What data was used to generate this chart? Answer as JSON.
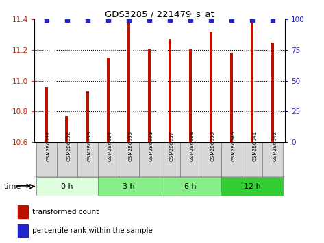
{
  "title": "GDS3285 / 221479_s_at",
  "samples": [
    "GSM286031",
    "GSM286032",
    "GSM286033",
    "GSM286034",
    "GSM286035",
    "GSM286036",
    "GSM286037",
    "GSM286038",
    "GSM286039",
    "GSM286040",
    "GSM286041",
    "GSM286042"
  ],
  "bar_values": [
    10.96,
    10.77,
    10.93,
    11.15,
    11.38,
    11.21,
    11.27,
    11.21,
    11.32,
    11.18,
    11.38,
    11.25
  ],
  "percentile_values": [
    99.5,
    99.5,
    99.5,
    99.5,
    99.5,
    99.5,
    99.5,
    99.5,
    99.5,
    99.5,
    99.5,
    99.5
  ],
  "ylim_left": [
    10.6,
    11.4
  ],
  "ylim_right": [
    0,
    100
  ],
  "yticks_left": [
    10.6,
    10.8,
    11.0,
    11.2,
    11.4
  ],
  "yticks_right": [
    0,
    25,
    50,
    75,
    100
  ],
  "bar_color": "#bb1100",
  "percentile_color": "#2222cc",
  "time_groups": [
    {
      "label": "0 h",
      "start": 0,
      "end": 3,
      "color": "#ddffdd"
    },
    {
      "label": "3 h",
      "start": 3,
      "end": 6,
      "color": "#88ee88"
    },
    {
      "label": "6 h",
      "start": 6,
      "end": 9,
      "color": "#88ee88"
    },
    {
      "label": "12 h",
      "start": 9,
      "end": 12,
      "color": "#33cc33"
    }
  ],
  "time_label": "time",
  "legend_bar_label": "transformed count",
  "legend_percentile_label": "percentile rank within the sample",
  "tick_label_color_left": "#cc2200",
  "tick_label_color_right": "#2222cc",
  "bar_width": 0.15,
  "n_samples": 12
}
